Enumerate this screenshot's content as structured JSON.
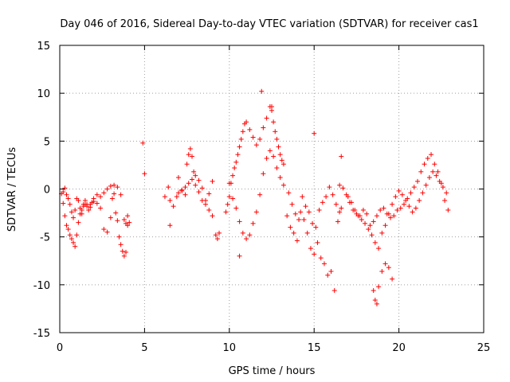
{
  "chart_data": {
    "type": "scatter",
    "title": "Day 046 of 2016, Sidereal Day-to-day VTEC variation (SDTVAR) for receiver cas1",
    "xlabel": "GPS time / hours",
    "ylabel": "SDTVAR / TECUs",
    "xlim": [
      0,
      25
    ],
    "ylim": [
      -15,
      15
    ],
    "xticks": [
      0,
      5,
      10,
      15,
      20,
      25
    ],
    "xtick_labels": [
      "0",
      "5",
      "10",
      "15",
      "20",
      "25"
    ],
    "yticks": [
      -15,
      -10,
      -5,
      0,
      5,
      10,
      15
    ],
    "ytick_labels": [
      "-15",
      "-10",
      "-5",
      "0",
      "5",
      "10",
      "15"
    ],
    "grid": true,
    "marker": "+",
    "series_color": "#ff0000",
    "series": [
      {
        "name": "SDTVAR",
        "x": [
          0.1,
          0.2,
          0.3,
          0.4,
          0.5,
          0.6,
          0.7,
          0.8,
          0.9,
          1.0,
          1.1,
          1.2,
          1.3,
          1.4,
          1.5,
          1.6,
          1.8,
          2.0,
          2.2,
          2.4,
          2.6,
          2.8,
          3.0,
          3.1,
          3.2,
          3.3,
          3.4,
          3.5,
          3.6,
          3.7,
          3.8,
          3.9,
          4.0,
          4.1,
          0.2,
          0.3,
          0.4,
          0.5,
          0.6,
          0.7,
          0.8,
          0.9,
          1.0,
          1.1,
          1.2,
          1.3,
          1.4,
          1.5,
          1.6,
          1.7,
          1.8,
          1.9,
          2.0,
          2.2,
          2.4,
          2.6,
          2.8,
          3.0,
          3.2,
          3.4,
          3.6,
          3.8,
          3.9,
          4.0,
          5.0,
          6.2,
          6.4,
          6.5,
          6.7,
          6.9,
          7.0,
          7.2,
          7.4,
          7.5,
          7.6,
          7.7,
          7.8,
          7.9,
          8.0,
          8.2,
          8.4,
          8.6,
          8.8,
          9.0,
          9.2,
          9.3,
          9.4,
          7.0,
          7.2,
          7.4,
          7.6,
          7.8,
          8.0,
          8.2,
          8.4,
          8.6,
          8.8,
          9.0,
          9.8,
          9.9,
          10.0,
          10.1,
          10.2,
          10.3,
          10.4,
          10.5,
          10.6,
          10.7,
          10.8,
          10.9,
          11.0,
          11.2,
          11.4,
          11.6,
          11.8,
          12.0,
          12.2,
          12.4,
          12.5,
          12.6,
          12.7,
          12.8,
          12.9,
          13.0,
          13.1,
          13.2,
          10.0,
          10.2,
          10.4,
          10.6,
          10.8,
          11.0,
          11.2,
          11.4,
          11.6,
          11.8,
          12.0,
          12.2,
          12.4,
          12.6,
          12.8,
          13.0,
          13.2,
          13.4,
          13.6,
          13.8,
          14.0,
          14.2,
          14.4,
          14.6,
          14.8,
          15.0,
          15.2,
          15.4,
          15.6,
          15.8,
          16.0,
          16.2,
          16.4,
          16.6,
          13.5,
          13.7,
          13.9,
          14.1,
          14.3,
          14.5,
          14.7,
          14.9,
          15.1,
          15.3,
          15.5,
          15.7,
          15.9,
          16.1,
          16.3,
          16.5,
          16.5,
          16.7,
          16.9,
          17.1,
          17.3,
          17.5,
          17.7,
          17.9,
          18.1,
          18.3,
          18.5,
          18.7,
          18.9,
          19.1,
          19.3,
          19.5,
          19.7,
          19.9,
          20.1,
          20.3,
          20.5,
          20.7,
          20.9,
          21.1,
          21.3,
          21.5,
          21.7,
          21.9,
          22.1,
          22.3,
          22.5,
          22.7,
          22.9,
          17.0,
          17.2,
          17.4,
          17.6,
          17.8,
          18.0,
          18.2,
          18.4,
          18.6,
          18.8,
          19.0,
          19.2,
          19.4,
          19.6,
          19.8,
          20.0,
          20.2,
          20.4,
          20.6,
          20.8,
          21.0,
          21.2,
          21.4,
          21.6,
          21.8,
          22.0,
          22.2,
          22.4,
          22.6,
          22.8,
          18.5,
          18.6,
          18.7,
          18.8,
          19.0,
          19.2,
          19.4,
          19.6,
          11.9,
          12.5,
          15.0,
          16.6,
          6.5,
          4.9,
          10.6
        ],
        "y": [
          -0.5,
          -1.5,
          -2.8,
          -3.8,
          -4.2,
          -4.8,
          -5.2,
          -5.6,
          -6.0,
          -4.8,
          -3.5,
          -2.6,
          -2.2,
          -1.6,
          -1.6,
          -1.8,
          -1.6,
          -1.3,
          -1.5,
          -2.0,
          -4.2,
          -4.5,
          -3.0,
          -1.0,
          -0.5,
          -2.5,
          -3.3,
          -5.0,
          -5.8,
          -6.5,
          -7.0,
          -6.6,
          -3.8,
          -3.5,
          -0.3,
          0.1,
          -0.6,
          -1.0,
          -1.6,
          -2.4,
          -3.0,
          -2.2,
          -1.0,
          -1.2,
          -2.0,
          -2.6,
          -1.8,
          -1.2,
          -1.6,
          -2.2,
          -1.9,
          -1.4,
          -1.0,
          -0.6,
          -0.8,
          -0.4,
          0.0,
          0.3,
          0.4,
          0.2,
          -0.6,
          -3.2,
          -3.6,
          -2.8,
          1.6,
          -0.8,
          0.2,
          -1.2,
          -1.8,
          -0.8,
          1.2,
          -0.2,
          -0.6,
          2.6,
          3.6,
          4.2,
          3.4,
          1.8,
          0.4,
          -0.3,
          -1.2,
          -1.6,
          -2.2,
          -2.8,
          -4.8,
          -5.2,
          -4.6,
          -0.4,
          -0.1,
          0.2,
          0.6,
          1.0,
          1.4,
          0.9,
          0.1,
          -1.2,
          -0.5,
          0.8,
          -2.4,
          -1.6,
          -0.8,
          0.6,
          1.4,
          2.2,
          2.8,
          3.6,
          4.4,
          5.2,
          6.0,
          6.8,
          7.0,
          6.2,
          5.4,
          4.6,
          5.2,
          6.4,
          7.4,
          8.6,
          8.2,
          7.0,
          6.0,
          5.2,
          4.4,
          3.6,
          3.0,
          2.6,
          0.6,
          -1.0,
          -2.0,
          -3.4,
          -4.6,
          -5.2,
          -4.8,
          -3.6,
          -2.4,
          -0.6,
          1.6,
          3.2,
          4.0,
          3.4,
          2.2,
          1.2,
          0.4,
          -2.8,
          -4.0,
          -4.6,
          -5.4,
          -2.4,
          -3.2,
          -4.6,
          -6.2,
          -6.8,
          -5.6,
          -7.2,
          -7.8,
          -9.0,
          -8.6,
          -10.6,
          -3.4,
          -2.0,
          -0.4,
          -1.6,
          -2.6,
          -3.2,
          -0.8,
          -1.8,
          -2.4,
          -3.6,
          -4.0,
          -2.2,
          -1.4,
          -0.8,
          0.2,
          -0.6,
          -1.6,
          -2.4,
          0.4,
          0.1,
          -0.6,
          -1.4,
          -2.2,
          -2.6,
          -2.8,
          -2.2,
          -2.6,
          -3.8,
          -3.4,
          -2.8,
          -2.2,
          -2.0,
          -2.6,
          -3.0,
          -2.8,
          -2.2,
          -2.0,
          -1.6,
          -1.0,
          -0.4,
          0.2,
          0.8,
          1.8,
          2.6,
          3.2,
          3.6,
          2.6,
          1.8,
          0.6,
          -1.2,
          -2.2,
          -0.8,
          -1.4,
          -2.2,
          -2.8,
          -3.2,
          -3.6,
          -4.2,
          -4.8,
          -5.6,
          -6.2,
          -4.6,
          -3.8,
          -2.6,
          -1.6,
          -0.8,
          -0.2,
          -0.6,
          -1.2,
          -1.8,
          -2.4,
          -2.0,
          -1.2,
          -0.4,
          0.4,
          1.2,
          1.8,
          1.4,
          0.8,
          0.2,
          -0.4,
          -10.6,
          -11.6,
          -12.0,
          -10.2,
          -8.6,
          -7.8,
          -8.2,
          -9.4,
          10.2,
          8.6,
          5.8,
          3.4,
          -3.8,
          4.8,
          -7.0
        ]
      }
    ]
  }
}
